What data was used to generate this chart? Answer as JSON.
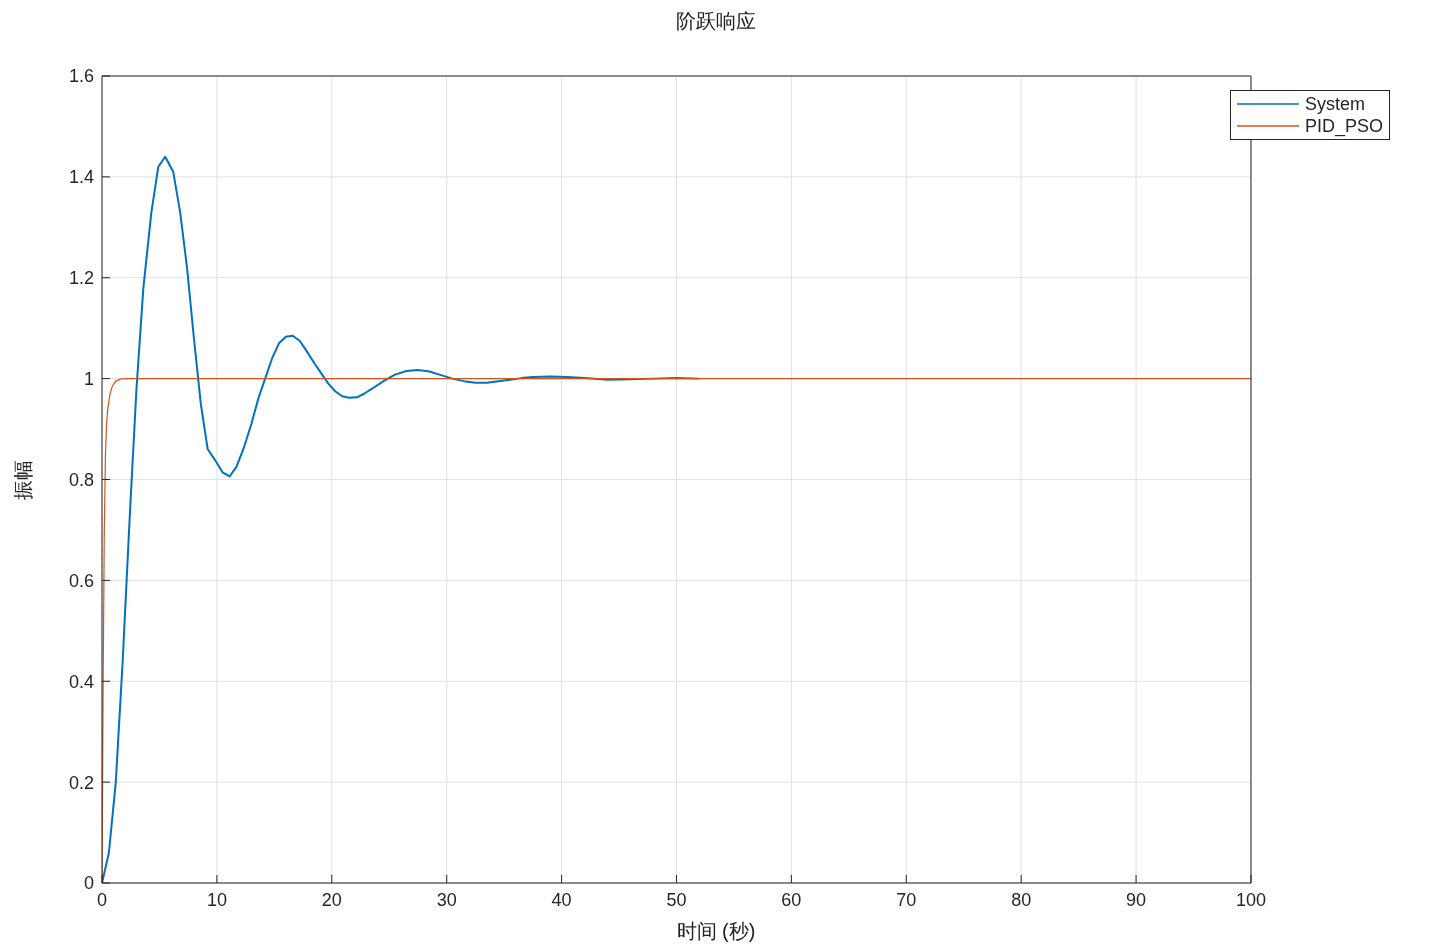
{
  "chart_data": {
    "type": "line",
    "title": "阶跃响应",
    "xlabel": "时间 (秒)",
    "ylabel": "振幅",
    "xlim": [
      0,
      100
    ],
    "xticks": [
      0,
      10,
      20,
      30,
      40,
      50,
      60,
      70,
      80,
      90,
      100
    ],
    "ylim": [
      0,
      1.6
    ],
    "yticks": [
      0,
      0.2,
      0.4,
      0.6,
      0.8,
      1,
      1.2,
      1.4,
      1.6
    ],
    "grid": true,
    "legend": "top right",
    "marker": "none",
    "line_style": "solid",
    "series": [
      {
        "name": "System",
        "color": "#0072bd",
        "x": [
          0,
          0.6,
          1.2,
          1.8,
          2.4,
          3.0,
          3.6,
          4.3,
          4.9,
          5.5,
          6.2,
          6.8,
          7.4,
          8.0,
          8.6,
          9.2,
          9.8,
          10.5,
          11.1,
          11.7,
          12.3,
          13.0,
          13.6,
          14.2,
          14.8,
          15.4,
          16.0,
          16.6,
          17.2,
          17.8,
          18.5,
          19.1,
          19.7,
          20.3,
          20.9,
          21.5,
          22.2,
          22.8,
          23.5,
          24.5,
          25.5,
          26.5,
          27.5,
          28.5,
          29.5,
          30.5,
          31.5,
          32.5,
          33.5,
          34.5,
          35.5,
          36.5,
          37.5,
          39,
          40.5,
          42,
          44,
          46,
          48,
          50,
          52
        ],
        "values": [
          0,
          0.06,
          0.2,
          0.44,
          0.72,
          0.98,
          1.18,
          1.33,
          1.42,
          1.44,
          1.41,
          1.33,
          1.22,
          1.08,
          0.95,
          0.86,
          0.84,
          0.814,
          0.806,
          0.825,
          0.86,
          0.91,
          0.96,
          1.0,
          1.04,
          1.07,
          1.083,
          1.085,
          1.075,
          1.055,
          1.03,
          1.01,
          0.99,
          0.975,
          0.965,
          0.962,
          0.963,
          0.97,
          0.98,
          0.995,
          1.008,
          1.015,
          1.017,
          1.014,
          1.007,
          1.0,
          0.995,
          0.992,
          0.992,
          0.995,
          0.998,
          1.001,
          1.003,
          1.004,
          1.003,
          1.001,
          0.998,
          0.999,
          1.0,
          1.001,
          1.0
        ]
      },
      {
        "name": "PID_PSO",
        "color": "#d95319",
        "x": [
          0,
          0.1,
          0.2,
          0.3,
          0.4,
          0.5,
          0.7,
          0.9,
          1.2,
          1.6,
          2,
          3,
          100
        ],
        "values": [
          0,
          0.4,
          0.7,
          0.85,
          0.91,
          0.94,
          0.97,
          0.985,
          0.995,
          0.999,
          1.0,
          1.0,
          1.0
        ]
      }
    ]
  }
}
